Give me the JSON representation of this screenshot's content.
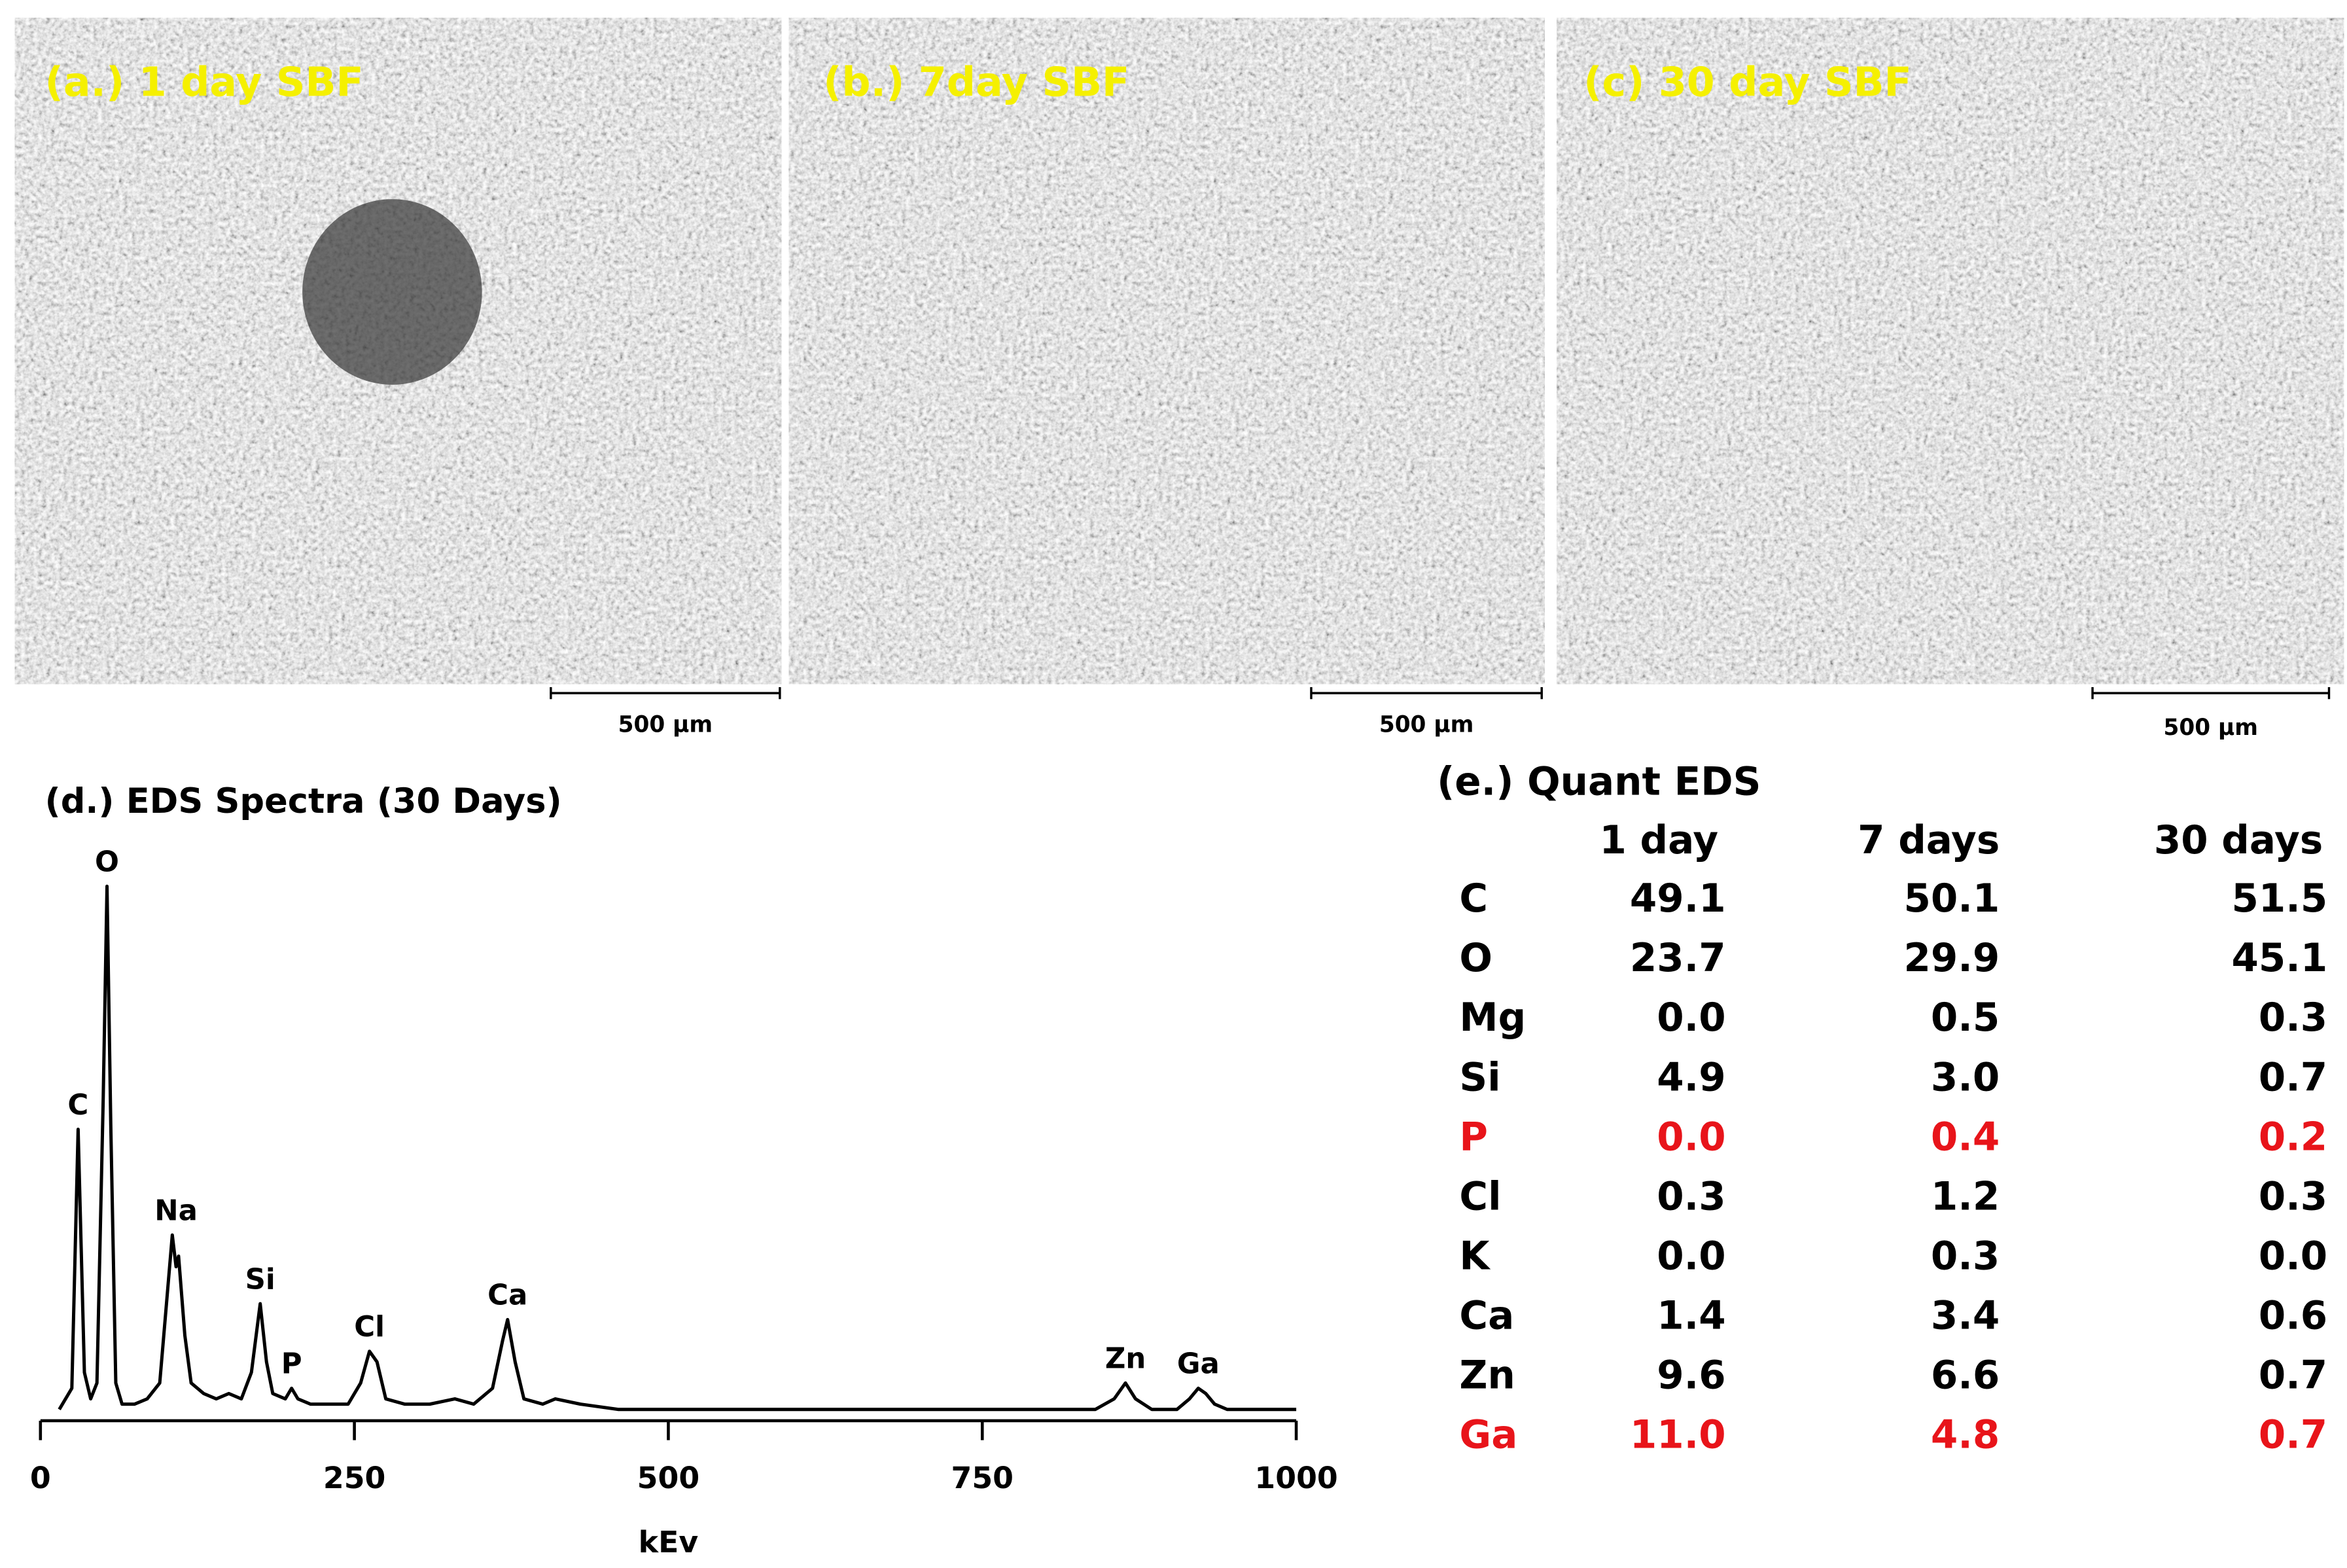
{
  "panels": [
    {
      "label": "(a.) 1 day SBF",
      "scale_bar": "500 μm"
    },
    {
      "label": "(b.) 7day SBF",
      "scale_bar": "500 μm"
    },
    {
      "label": "(c) 30 day SBF",
      "scale_bar": "500 μm"
    }
  ],
  "chart_data": {
    "type": "line",
    "title": "(d.) EDS Spectra (30 Days)",
    "xlabel": "kEv",
    "color": "#000000",
    "x": [
      15,
      25,
      30,
      35,
      40,
      45,
      50,
      53,
      56,
      60,
      65,
      75,
      85,
      95,
      100,
      105,
      108,
      110,
      115,
      120,
      130,
      140,
      150,
      160,
      168,
      175,
      180,
      185,
      195,
      200,
      205,
      215,
      230,
      245,
      255,
      262,
      268,
      275,
      290,
      310,
      330,
      345,
      360,
      368,
      372,
      378,
      385,
      400,
      410,
      430,
      460,
      500,
      550,
      600,
      650,
      700,
      750,
      800,
      840,
      855,
      864,
      872,
      885,
      905,
      915,
      922,
      928,
      935,
      945,
      970,
      1000
    ],
    "values": [
      1,
      5,
      54,
      8,
      3,
      6,
      60,
      100,
      55,
      6,
      2,
      2,
      3,
      6,
      20,
      34,
      28,
      30,
      15,
      6,
      4,
      3,
      4,
      3,
      8,
      21,
      10,
      4,
      3,
      5,
      3,
      2,
      2,
      2,
      6,
      12,
      10,
      3,
      2,
      2,
      3,
      2,
      5,
      14,
      18,
      10,
      3,
      2,
      3,
      2,
      1,
      1,
      1,
      1,
      1,
      1,
      1,
      1,
      1,
      3,
      6,
      3,
      1,
      1,
      3,
      5,
      4,
      2,
      1,
      1,
      1
    ],
    "xlim": [
      0,
      1000
    ],
    "xticks": [
      0,
      250,
      500,
      750,
      1000
    ],
    "ylim": [
      0,
      100
    ],
    "annotations": [
      {
        "text": "C",
        "x": 30,
        "y": 54
      },
      {
        "text": "O",
        "x": 53,
        "y": 100
      },
      {
        "text": "Na",
        "x": 108,
        "y": 34
      },
      {
        "text": "Si",
        "x": 175,
        "y": 21
      },
      {
        "text": "P",
        "x": 200,
        "y": 5
      },
      {
        "text": "Cl",
        "x": 262,
        "y": 12
      },
      {
        "text": "Ca",
        "x": 372,
        "y": 18
      },
      {
        "text": "Zn",
        "x": 864,
        "y": 6
      },
      {
        "text": "Ga",
        "x": 922,
        "y": 5
      }
    ]
  },
  "table": {
    "title": "(e.) Quant EDS",
    "columns": [
      "1 day",
      "7 days",
      "30 days"
    ],
    "highlight_color": "#e8141a",
    "rows": [
      {
        "label": "C",
        "cells": [
          "49.1",
          "50.1",
          "51.5"
        ]
      },
      {
        "label": "O",
        "cells": [
          "23.7",
          "29.9",
          "45.1"
        ]
      },
      {
        "label": "Mg",
        "cells": [
          "0.0",
          "0.5",
          "0.3"
        ]
      },
      {
        "label": "Si",
        "cells": [
          "4.9",
          "3.0",
          "0.7"
        ]
      },
      {
        "label": "P",
        "cells": [
          "0.0",
          "0.4",
          "0.2"
        ],
        "highlight": true
      },
      {
        "label": "Cl",
        "cells": [
          "0.3",
          "1.2",
          "0.3"
        ]
      },
      {
        "label": "K",
        "cells": [
          "0.0",
          "0.3",
          "0.0"
        ]
      },
      {
        "label": "Ca",
        "cells": [
          "1.4",
          "3.4",
          "0.6"
        ]
      },
      {
        "label": "Zn",
        "cells": [
          "9.6",
          "6.6",
          "0.7"
        ]
      },
      {
        "label": "Ga",
        "cells": [
          "11.0",
          "4.8",
          "0.7"
        ],
        "highlight": true
      }
    ]
  }
}
